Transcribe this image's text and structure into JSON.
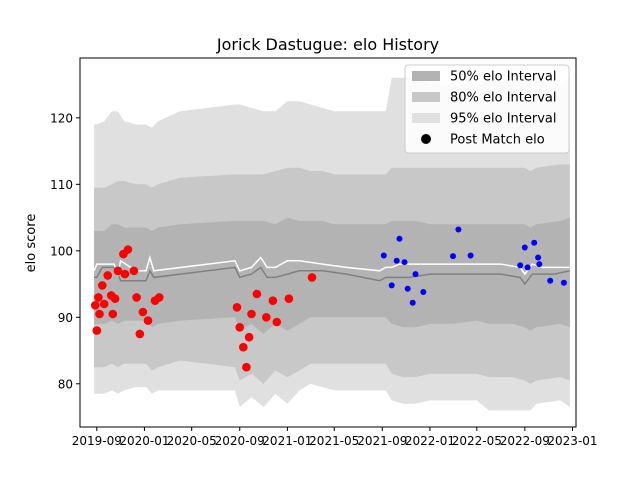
{
  "chart_data": {
    "type": "scatter",
    "title": "Jorick Dastugue: elo History",
    "xlabel": "",
    "ylabel": "elo score",
    "xlim": [
      "2019-07-20",
      "2023-01-10"
    ],
    "ylim": [
      73.5,
      129
    ],
    "x_ticks": [
      {
        "date": "2019-09-01",
        "label": "2019-09"
      },
      {
        "date": "2020-01-01",
        "label": "2020-01"
      },
      {
        "date": "2020-05-01",
        "label": "2020-05"
      },
      {
        "date": "2020-09-01",
        "label": "2020-09"
      },
      {
        "date": "2021-01-01",
        "label": "2021-01"
      },
      {
        "date": "2021-05-01",
        "label": "2021-05"
      },
      {
        "date": "2021-09-01",
        "label": "2021-09"
      },
      {
        "date": "2022-01-01",
        "label": "2022-01"
      },
      {
        "date": "2022-05-01",
        "label": "2022-05"
      },
      {
        "date": "2022-09-01",
        "label": "2022-09"
      },
      {
        "date": "2023-01-01",
        "label": "2023-01"
      }
    ],
    "y_ticks": [
      80,
      90,
      100,
      110,
      120
    ],
    "grid": false,
    "legend": {
      "position": "top-right",
      "entries": [
        {
          "label": "50% elo Interval",
          "kind": "patch",
          "color": "#b3b3b3"
        },
        {
          "label": "80% elo Interval",
          "kind": "patch",
          "color": "#c8c8c8"
        },
        {
          "label": "95% elo Interval",
          "kind": "patch",
          "color": "#e0e0e0"
        },
        {
          "label": "Post Match elo",
          "kind": "dot",
          "color": "#000000"
        }
      ]
    },
    "colors": {
      "band95": "#e0e0e0",
      "band80": "#c8c8c8",
      "band50": "#b3b3b3",
      "median_line": "#808080",
      "mean_line": "#ffffff",
      "red_points": "#ff0000",
      "blue_points": "#0000ff"
    },
    "bands": {
      "x": [
        "2019-08-25",
        "2019-09-01",
        "2019-09-20",
        "2019-10-10",
        "2019-10-25",
        "2019-11-10",
        "2019-12-10",
        "2020-01-05",
        "2020-01-20",
        "2020-02-05",
        "2020-04-01",
        "2020-08-20",
        "2020-09-01",
        "2020-10-01",
        "2020-11-01",
        "2020-12-01",
        "2021-01-01",
        "2021-02-01",
        "2021-03-01",
        "2021-04-01",
        "2021-05-01",
        "2021-06-01",
        "2021-08-25",
        "2021-09-10",
        "2021-09-25",
        "2021-10-25",
        "2021-11-25",
        "2022-01-01",
        "2022-03-01",
        "2022-05-01",
        "2022-06-01",
        "2022-08-01",
        "2022-09-01",
        "2022-09-15",
        "2022-10-01",
        "2022-12-01",
        "2022-12-25"
      ],
      "p95_low": [
        78.5,
        78.5,
        78.5,
        79.0,
        78.5,
        79.0,
        79.5,
        79.5,
        78.5,
        79.0,
        79.0,
        79.0,
        76.5,
        78.0,
        76.5,
        78.5,
        77.0,
        79.0,
        80.0,
        79.5,
        79.0,
        79.0,
        79.0,
        79.0,
        77.5,
        77.0,
        77.0,
        77.5,
        77.5,
        77.5,
        76.0,
        76.0,
        76.0,
        76.0,
        77.0,
        77.5,
        76.5
      ],
      "p80_low": [
        82.5,
        82.5,
        82.5,
        83.0,
        82.5,
        83.0,
        83.0,
        83.0,
        82.0,
        82.5,
        83.5,
        82.5,
        80.5,
        81.5,
        80.0,
        82.0,
        81.0,
        82.0,
        83.0,
        83.0,
        83.0,
        83.0,
        83.0,
        83.0,
        81.5,
        81.0,
        81.0,
        81.5,
        81.5,
        81.5,
        81.0,
        81.0,
        80.5,
        80.0,
        80.5,
        81.0,
        80.5
      ],
      "p50_low": [
        89.0,
        89.0,
        89.0,
        89.5,
        89.0,
        89.5,
        89.5,
        89.5,
        88.5,
        89.0,
        89.5,
        90.0,
        88.0,
        89.0,
        87.5,
        89.0,
        88.0,
        89.0,
        90.0,
        90.0,
        90.0,
        90.0,
        90.0,
        90.0,
        89.0,
        88.5,
        88.5,
        89.0,
        89.0,
        89.5,
        89.0,
        89.0,
        88.5,
        88.0,
        88.5,
        89.0,
        88.5
      ],
      "p50_high": [
        103.0,
        103.0,
        103.0,
        104.0,
        104.0,
        103.5,
        103.5,
        103.5,
        103.0,
        103.5,
        104.0,
        104.5,
        104.5,
        104.5,
        104.5,
        104.0,
        105.0,
        104.5,
        104.5,
        104.5,
        104.0,
        104.0,
        104.0,
        104.0,
        104.5,
        104.5,
        104.5,
        104.0,
        104.0,
        104.0,
        104.0,
        104.0,
        104.0,
        103.5,
        104.0,
        104.5,
        105.0
      ],
      "p80_high": [
        109.5,
        109.5,
        109.5,
        110.0,
        110.5,
        110.5,
        110.0,
        110.0,
        109.5,
        110.0,
        111.0,
        111.5,
        111.5,
        111.5,
        111.5,
        112.0,
        112.5,
        112.5,
        112.0,
        112.0,
        111.5,
        111.5,
        111.5,
        111.5,
        112.5,
        112.5,
        112.5,
        112.5,
        112.5,
        112.5,
        112.5,
        112.5,
        112.5,
        112.0,
        112.5,
        113.0,
        113.0
      ],
      "p95_high": [
        119.0,
        119.0,
        119.5,
        121.0,
        121.0,
        119.5,
        119.0,
        119.0,
        118.5,
        119.5,
        121.0,
        122.0,
        122.0,
        121.5,
        121.0,
        121.0,
        122.5,
        122.5,
        122.0,
        121.5,
        121.0,
        121.0,
        121.0,
        121.0,
        126.0,
        126.0,
        126.0,
        125.0,
        125.0,
        125.0,
        125.5,
        125.5,
        125.5,
        125.0,
        125.5,
        125.0,
        126.0
      ]
    },
    "median_line": {
      "x": [
        "2019-08-25",
        "2019-09-01",
        "2019-09-15",
        "2019-10-15",
        "2019-10-25",
        "2019-11-01",
        "2019-12-10",
        "2020-01-05",
        "2020-01-15",
        "2020-01-25",
        "2020-08-20",
        "2020-09-01",
        "2020-10-01",
        "2020-10-25",
        "2020-11-10",
        "2020-12-01",
        "2021-01-01",
        "2021-02-01",
        "2021-04-01",
        "2021-06-01",
        "2021-08-25",
        "2021-09-10",
        "2021-09-25",
        "2021-10-15",
        "2021-11-10",
        "2022-01-01",
        "2022-03-01",
        "2022-05-01",
        "2022-07-01",
        "2022-08-20",
        "2022-09-01",
        "2022-09-20",
        "2022-10-15",
        "2022-11-15",
        "2022-12-25"
      ],
      "values": [
        96.0,
        96.0,
        97.5,
        97.5,
        96.5,
        95.5,
        95.5,
        95.5,
        97.0,
        96.0,
        97.5,
        96.0,
        96.5,
        97.5,
        96.0,
        96.0,
        96.5,
        97.0,
        97.0,
        96.5,
        95.5,
        96.0,
        96.0,
        96.0,
        96.0,
        96.5,
        96.5,
        96.5,
        96.5,
        96.0,
        95.0,
        96.5,
        96.5,
        96.5,
        97.0
      ]
    },
    "mean_line": {
      "x": [
        "2019-08-25",
        "2019-09-01",
        "2019-09-15",
        "2019-10-15",
        "2019-10-25",
        "2019-11-01",
        "2019-12-10",
        "2020-01-05",
        "2020-01-15",
        "2020-01-25",
        "2020-08-20",
        "2020-09-01",
        "2020-10-01",
        "2020-10-25",
        "2020-11-10",
        "2020-12-01",
        "2021-01-01",
        "2021-02-01",
        "2021-04-01",
        "2021-06-01",
        "2021-08-25",
        "2021-09-10",
        "2021-09-25",
        "2021-10-15",
        "2021-11-10",
        "2022-01-01",
        "2022-03-01",
        "2022-05-01",
        "2022-07-01",
        "2022-08-20",
        "2022-09-01",
        "2022-09-20",
        "2022-10-15",
        "2022-11-15",
        "2022-12-25"
      ],
      "values": [
        97.0,
        98.0,
        98.0,
        98.0,
        96.5,
        98.5,
        97.0,
        97.0,
        99.0,
        97.0,
        98.5,
        97.0,
        97.5,
        99.0,
        97.5,
        97.5,
        98.5,
        98.5,
        98.0,
        97.5,
        97.0,
        97.5,
        97.5,
        98.0,
        98.0,
        98.0,
        98.0,
        98.0,
        98.0,
        97.5,
        96.5,
        98.0,
        97.5,
        97.5,
        97.5
      ]
    },
    "series": [
      {
        "color": "red",
        "x": [
          "2019-08-28",
          "2019-09-01",
          "2019-09-05",
          "2019-09-08",
          "2019-09-15",
          "2019-09-20",
          "2019-09-29",
          "2019-10-08",
          "2019-10-12",
          "2019-10-18",
          "2019-10-25",
          "2019-11-08",
          "2019-11-12",
          "2019-11-20",
          "2019-12-05",
          "2019-12-12",
          "2019-12-20",
          "2019-12-28",
          "2020-01-10",
          "2020-01-28",
          "2020-02-08",
          "2020-08-25",
          "2020-09-01",
          "2020-09-10",
          "2020-09-18",
          "2020-09-25",
          "2020-10-01",
          "2020-10-15",
          "2020-11-08",
          "2020-11-25",
          "2020-12-05",
          "2021-01-05",
          "2021-03-05"
        ],
        "y": [
          91.8,
          88.0,
          93.0,
          90.5,
          94.8,
          92.0,
          96.3,
          93.3,
          90.5,
          92.8,
          97.0,
          99.5,
          96.5,
          100.2,
          97.0,
          93.0,
          87.5,
          90.8,
          89.5,
          92.5,
          93.0,
          91.5,
          88.5,
          85.5,
          82.5,
          87.0,
          90.5,
          93.5,
          90.0,
          92.5,
          89.3,
          92.8,
          96.0
        ]
      },
      {
        "color": "blue",
        "x": [
          "2021-09-05",
          "2021-09-25",
          "2021-10-08",
          "2021-10-15",
          "2021-10-28",
          "2021-11-05",
          "2021-11-18",
          "2021-11-25",
          "2021-12-15",
          "2022-03-01",
          "2022-03-15",
          "2022-04-15",
          "2022-08-20",
          "2022-09-01",
          "2022-09-08",
          "2022-09-25",
          "2022-10-05",
          "2022-10-08",
          "2022-11-05",
          "2022-12-10"
        ],
        "y": [
          99.3,
          94.8,
          98.5,
          101.8,
          98.3,
          94.3,
          92.2,
          96.5,
          93.8,
          99.2,
          103.2,
          99.3,
          97.8,
          100.5,
          97.5,
          101.2,
          99.0,
          98.0,
          95.5,
          95.2
        ]
      }
    ]
  }
}
